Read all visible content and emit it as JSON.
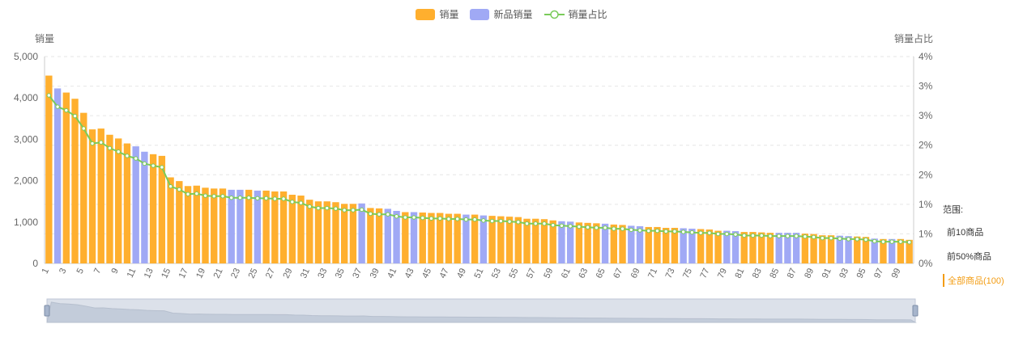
{
  "legend": {
    "sales_label": "销量",
    "new_sales_label": "新品销量",
    "ratio_label": "销量占比"
  },
  "colors": {
    "sales": "#FFAF2E",
    "new_sales": "#A0A9F5",
    "ratio_line": "#7ACB5A",
    "grid": "#E6E6E6"
  },
  "range": {
    "title": "范围:",
    "options": [
      "前10商品",
      "前50%商品",
      "全部商品(100)"
    ],
    "active_index": 2
  },
  "chart_data": {
    "type": "bar",
    "ylabel_left": "销量",
    "ylabel_right": "销量占比",
    "ylim_left": [
      0,
      5000
    ],
    "ylim_right": [
      0,
      4
    ],
    "yticks_left": [
      "0",
      "1,000",
      "2,000",
      "3,000",
      "4,000",
      "5,000"
    ],
    "yticks_right": [
      "0%",
      "1%",
      "1%",
      "2%",
      "2%",
      "3%",
      "3%",
      "4%"
    ],
    "grid": true,
    "legend_position": "top-center",
    "categories": [
      1,
      2,
      3,
      4,
      5,
      6,
      7,
      8,
      9,
      10,
      11,
      12,
      13,
      14,
      15,
      16,
      17,
      18,
      19,
      20,
      21,
      22,
      23,
      24,
      25,
      26,
      27,
      28,
      29,
      30,
      31,
      32,
      33,
      34,
      35,
      36,
      37,
      38,
      39,
      40,
      41,
      42,
      43,
      44,
      45,
      46,
      47,
      48,
      49,
      50,
      51,
      52,
      53,
      54,
      55,
      56,
      57,
      58,
      59,
      60,
      61,
      62,
      63,
      64,
      65,
      66,
      67,
      68,
      69,
      70,
      71,
      72,
      73,
      74,
      75,
      76,
      77,
      78,
      79,
      80,
      81,
      82,
      83,
      84,
      85,
      86,
      87,
      88,
      89,
      90,
      91,
      92,
      93,
      94,
      95,
      96,
      97,
      98,
      99,
      100
    ],
    "xtick_labels": [
      1,
      3,
      5,
      7,
      9,
      11,
      13,
      15,
      17,
      19,
      21,
      23,
      25,
      27,
      29,
      31,
      33,
      35,
      37,
      39,
      41,
      43,
      45,
      47,
      49,
      51,
      53,
      55,
      57,
      59,
      61,
      63,
      65,
      67,
      69,
      71,
      73,
      75,
      77,
      79,
      81,
      83,
      85,
      87,
      89,
      91,
      93,
      95,
      97,
      99
    ],
    "series": [
      {
        "name": "销量",
        "axis": "left",
        "values": [
          4540,
          4230,
          4130,
          3980,
          3640,
          3240,
          3260,
          3110,
          3020,
          2900,
          2830,
          2700,
          2640,
          2600,
          2080,
          1990,
          1870,
          1880,
          1830,
          1810,
          1810,
          1780,
          1780,
          1780,
          1760,
          1760,
          1740,
          1740,
          1660,
          1640,
          1540,
          1500,
          1500,
          1480,
          1440,
          1440,
          1450,
          1340,
          1330,
          1320,
          1270,
          1240,
          1240,
          1230,
          1220,
          1220,
          1200,
          1200,
          1180,
          1180,
          1160,
          1150,
          1140,
          1130,
          1120,
          1080,
          1080,
          1070,
          1040,
          1020,
          1010,
          990,
          980,
          970,
          960,
          940,
          930,
          910,
          900,
          880,
          880,
          860,
          860,
          850,
          840,
          830,
          820,
          790,
          790,
          780,
          760,
          760,
          750,
          740,
          740,
          740,
          740,
          720,
          710,
          680,
          680,
          670,
          660,
          650,
          640,
          600,
          590,
          590,
          590,
          570
        ],
        "new_flags": [
          0,
          1,
          0,
          0,
          0,
          0,
          0,
          0,
          0,
          0,
          1,
          1,
          0,
          0,
          0,
          0,
          0,
          0,
          0,
          0,
          0,
          1,
          1,
          0,
          1,
          0,
          0,
          0,
          0,
          0,
          0,
          0,
          0,
          0,
          0,
          0,
          1,
          0,
          0,
          1,
          1,
          0,
          1,
          0,
          0,
          0,
          0,
          0,
          1,
          0,
          1,
          0,
          0,
          0,
          0,
          0,
          0,
          0,
          0,
          1,
          1,
          0,
          0,
          0,
          1,
          0,
          0,
          1,
          1,
          0,
          0,
          0,
          0,
          1,
          1,
          0,
          0,
          0,
          1,
          1,
          0,
          0,
          0,
          0,
          1,
          1,
          1,
          0,
          0,
          0,
          0,
          1,
          1,
          0,
          0,
          1,
          0,
          1,
          0,
          0
        ]
      },
      {
        "name": "销量占比",
        "axis": "right",
        "values": [
          3.25,
          3.03,
          2.96,
          2.85,
          2.61,
          2.32,
          2.34,
          2.23,
          2.16,
          2.08,
          2.03,
          1.93,
          1.89,
          1.86,
          1.49,
          1.43,
          1.34,
          1.35,
          1.31,
          1.3,
          1.3,
          1.27,
          1.27,
          1.27,
          1.26,
          1.26,
          1.25,
          1.25,
          1.19,
          1.17,
          1.1,
          1.07,
          1.07,
          1.06,
          1.03,
          1.03,
          1.04,
          0.96,
          0.95,
          0.95,
          0.91,
          0.89,
          0.89,
          0.88,
          0.87,
          0.87,
          0.86,
          0.86,
          0.85,
          0.85,
          0.83,
          0.82,
          0.82,
          0.81,
          0.8,
          0.77,
          0.77,
          0.77,
          0.74,
          0.73,
          0.72,
          0.71,
          0.7,
          0.69,
          0.69,
          0.67,
          0.67,
          0.65,
          0.64,
          0.63,
          0.63,
          0.62,
          0.62,
          0.61,
          0.6,
          0.59,
          0.59,
          0.57,
          0.57,
          0.56,
          0.54,
          0.54,
          0.54,
          0.53,
          0.53,
          0.53,
          0.53,
          0.52,
          0.51,
          0.49,
          0.49,
          0.48,
          0.47,
          0.47,
          0.46,
          0.43,
          0.42,
          0.42,
          0.42,
          0.41
        ]
      }
    ]
  }
}
